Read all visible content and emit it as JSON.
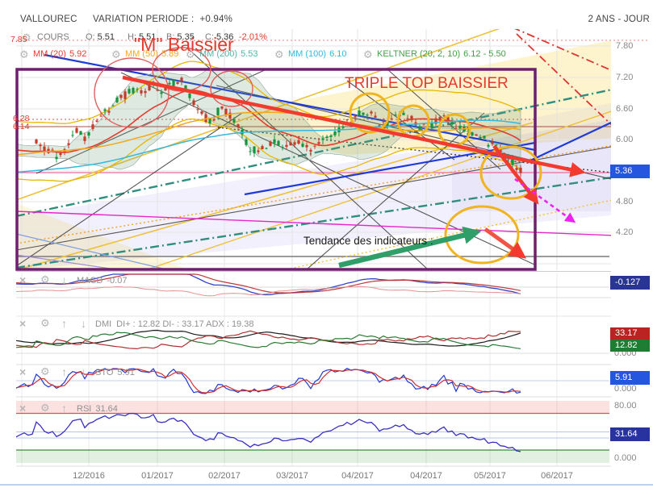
{
  "header": {
    "symbol": "VALLOUREC",
    "variation_label": "VARIATION PERIODE :",
    "variation_value": "+0.94%",
    "timeframe": "2 ANS - JOUR"
  },
  "quote": {
    "label": "COURS",
    "o_label": "O:",
    "o": "5.51",
    "h_label": "H:",
    "h": "5.51",
    "b_label": "B:",
    "b": "5.35",
    "c_label": "C:",
    "c": "5.36",
    "change": "-2.01%"
  },
  "overlays": [
    {
      "label": "MM (20)",
      "value": "5.92",
      "color": "#e23b2e"
    },
    {
      "label": "MM (50)",
      "value": "5.89",
      "color": "#f2a71f"
    },
    {
      "label": "MM (200)",
      "value": "5.53",
      "color": "#4db6a4"
    },
    {
      "label": "MM (100)",
      "value": "6.10",
      "color": "#35b8dc"
    },
    {
      "label": "KELTNER (20, 2, 10)",
      "value": "6.12 - 5.50",
      "color": "#43a047"
    }
  ],
  "icons": {
    "close": "×",
    "settings": "⚙",
    "up": "↑",
    "down": "↓"
  },
  "annotations": {
    "m_baissier": "\"M\" Baissier",
    "triple_top": "TRIPLE TOP BAISSIER",
    "tendance": "Tendance des indicateurs :",
    "level_785": "7.85",
    "level_628": "6.28",
    "level_614": "6.14"
  },
  "price_axis": [
    "7.80",
    "7.20",
    "6.60",
    "6.00",
    "5.40",
    "4.80",
    "4.20"
  ],
  "last_price_badge": "5.36",
  "x_axis": [
    "12/2016",
    "01/2017",
    "02/2017",
    "03/2017",
    "04/2017",
    "04/2017",
    "05/2017",
    "06/2017"
  ],
  "panels": {
    "macd": {
      "label": "MACD",
      "value": "-0.07",
      "badge": "-0.127",
      "badge_color": "#283593"
    },
    "dmi": {
      "label": "DMI",
      "text": "DI+ : 12.82 DI- : 33.17 ADX : 19.38",
      "badge_plus": "12.82",
      "badge_plus_color": "#1e7d32",
      "badge_minus": "33.17",
      "badge_minus_color": "#bb2222",
      "zero_label": "0.000"
    },
    "sto": {
      "label": "STO",
      "value": "5.91",
      "badge": "5.91",
      "badge_color": "#2456e0",
      "zero_label": "0.000"
    },
    "rsi": {
      "label": "RSI",
      "value": "31.64",
      "badge": "31.64",
      "badge_color": "#2833a0",
      "upper_label": "80.00",
      "zero_label": "0.000"
    }
  },
  "colors": {
    "last_price_badge_bg": "#2456e0",
    "up_candle": "#12953c",
    "down_candle": "#c23b2b"
  },
  "chart_data": {
    "type": "candlestick",
    "title": "VALLOUREC 2 ANS - JOUR",
    "ylim": [
      3.9,
      7.95
    ],
    "price_gridlines": [
      7.8,
      7.2,
      6.6,
      6.0,
      5.4,
      4.8,
      4.2,
      3.6
    ],
    "months": [
      "12/2016",
      "01/2017",
      "02/2017",
      "03/2017",
      "04/2017",
      "04/2017",
      "05/2017",
      "06/2017"
    ],
    "last_ohlc": {
      "open": 5.51,
      "high": 5.51,
      "low": 5.35,
      "close": 5.36,
      "change_pct": -2.01
    },
    "horizontal_levels": [
      7.85,
      6.28,
      6.14,
      5.36
    ],
    "price_anchors": [
      [
        45,
        6.0
      ],
      [
        60,
        5.7
      ],
      [
        72,
        5.6
      ],
      [
        85,
        5.9
      ],
      [
        95,
        6.2
      ],
      [
        105,
        6.05
      ],
      [
        115,
        6.2
      ],
      [
        125,
        6.35
      ],
      [
        138,
        6.6
      ],
      [
        150,
        6.8
      ],
      [
        162,
        7.0
      ],
      [
        175,
        6.95
      ],
      [
        188,
        7.1
      ],
      [
        200,
        6.9
      ],
      [
        212,
        7.05
      ],
      [
        225,
        7.1
      ],
      [
        238,
        6.8
      ],
      [
        250,
        6.5
      ],
      [
        260,
        6.3
      ],
      [
        272,
        6.5
      ],
      [
        285,
        6.4
      ],
      [
        298,
        6.15
      ],
      [
        310,
        5.85
      ],
      [
        325,
        5.9
      ],
      [
        340,
        6.0
      ],
      [
        355,
        5.85
      ],
      [
        370,
        6.0
      ],
      [
        385,
        5.9
      ],
      [
        400,
        6.0
      ],
      [
        415,
        6.1
      ],
      [
        430,
        6.25
      ],
      [
        445,
        6.45
      ],
      [
        458,
        6.55
      ],
      [
        470,
        6.35
      ],
      [
        482,
        6.25
      ],
      [
        495,
        6.45
      ],
      [
        508,
        6.4
      ],
      [
        522,
        6.3
      ],
      [
        538,
        6.4
      ],
      [
        552,
        6.45
      ],
      [
        565,
        6.25
      ],
      [
        578,
        6.1
      ],
      [
        592,
        6.15
      ],
      [
        605,
        5.95
      ],
      [
        618,
        5.8
      ],
      [
        630,
        5.6
      ],
      [
        642,
        5.36
      ]
    ],
    "overlay_values": {
      "mm20": 5.92,
      "mm50": 5.89,
      "mm100": 6.1,
      "mm200": 5.53,
      "keltner": [
        6.12,
        5.5
      ]
    },
    "indicators": {
      "macd": -0.127,
      "di_plus": 12.82,
      "di_minus": 33.17,
      "adx": 19.38,
      "sto": 5.91,
      "rsi": 31.64,
      "rsi_upper_band": 80,
      "rsi_lower_band": 20
    }
  }
}
